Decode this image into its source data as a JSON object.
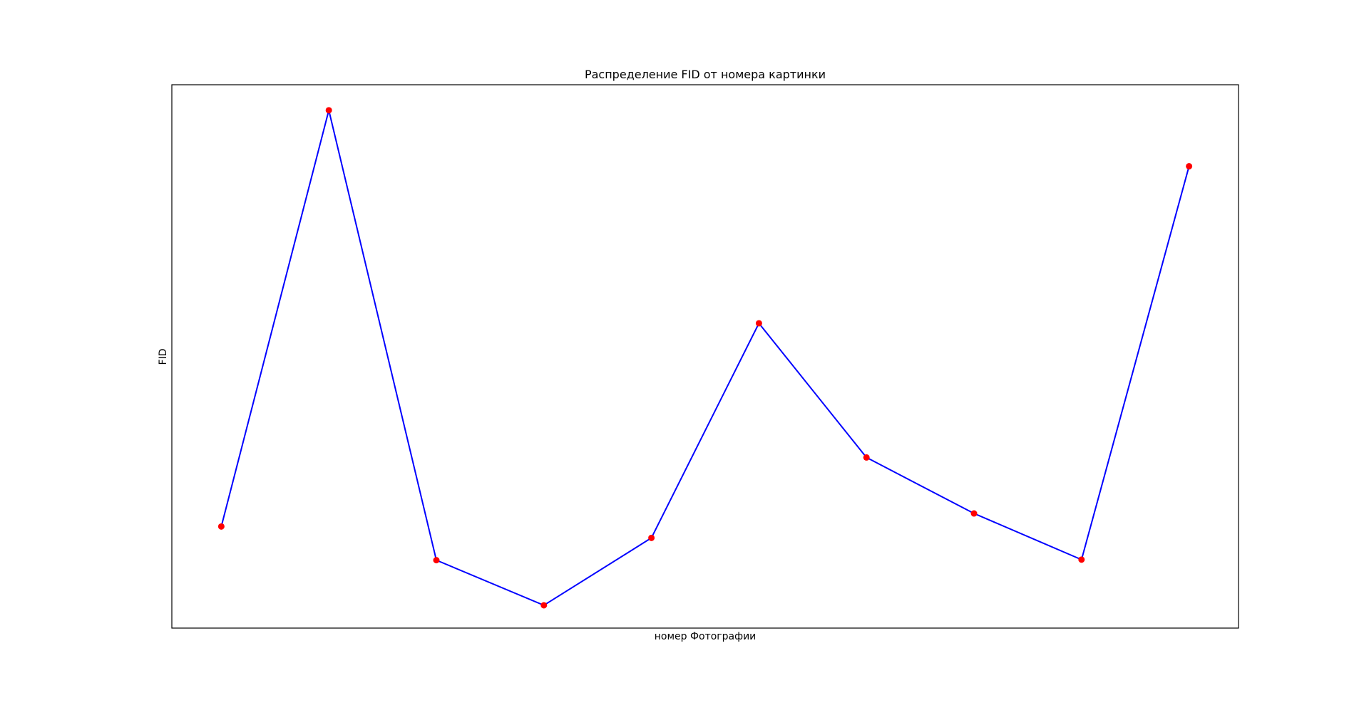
{
  "chart_data": {
    "type": "line",
    "title": "Распределение FID от номера картинки",
    "xlabel": "номер Фотографии",
    "ylabel": "FID",
    "x": [
      1,
      2,
      3,
      4,
      5,
      6,
      7,
      8,
      9,
      10
    ],
    "series": [
      {
        "values": [
          18.7,
          95.3,
          12.5,
          4.2,
          16.6,
          56.1,
          31.4,
          21.1,
          12.6,
          85.0
        ],
        "line_color": "#0000ff",
        "marker_color": "#ff0000",
        "marker": "circle"
      }
    ],
    "xlim": [
      0.54,
      10.46
    ],
    "ylim": [
      0.0,
      100.0
    ],
    "xticks_visible": false,
    "yticks_visible": false,
    "grid": false,
    "legend": false
  }
}
